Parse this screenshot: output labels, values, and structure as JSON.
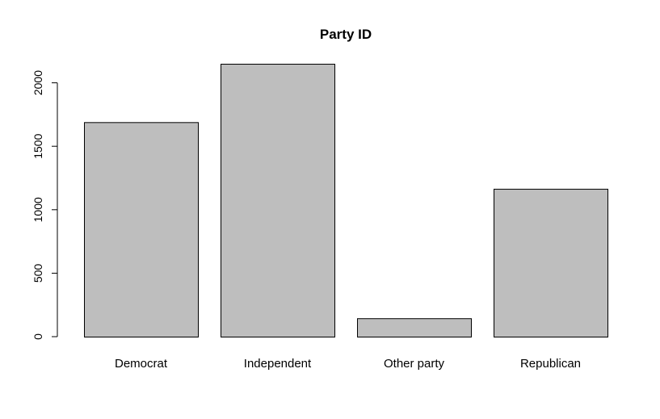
{
  "chart_data": {
    "type": "bar",
    "title": "Party ID",
    "xlabel": "",
    "ylabel": "",
    "categories": [
      "Democrat",
      "Independent",
      "Other party",
      "Republican"
    ],
    "values": [
      1690,
      2150,
      145,
      1165
    ],
    "ylim": [
      0,
      2150
    ],
    "yticks": [
      0,
      500,
      1000,
      1500,
      2000
    ],
    "ytick_labels": [
      "0",
      "500",
      "1000",
      "1500",
      "2000"
    ],
    "grid": false,
    "bar_color": "#bebebe",
    "bar_edge_color": "#000000"
  }
}
